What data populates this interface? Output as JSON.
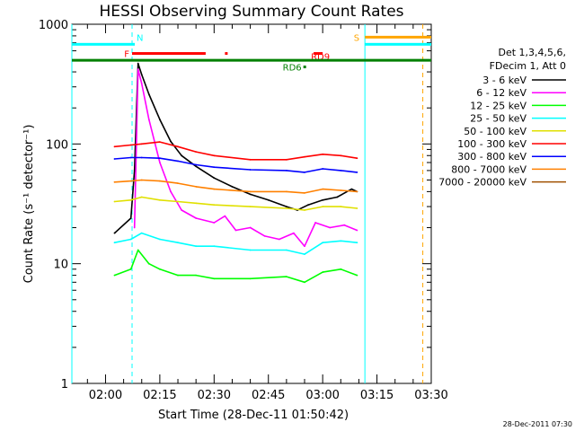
{
  "chart_data": {
    "type": "line",
    "title": "HESSI Observing Summary Count Rates",
    "xlabel": "Start Time (28-Dec-11 01:50:42)",
    "ylabel": "Count Rate (s⁻¹ detector⁻¹)",
    "yscale": "log",
    "ylim": [
      1,
      1000
    ],
    "xlim": [
      "01:50:42",
      "03:30:00"
    ],
    "yticks": [
      {
        "value": 1,
        "label": "1"
      },
      {
        "value": 10,
        "label": "10"
      },
      {
        "value": 100,
        "label": "100"
      },
      {
        "value": 1000,
        "label": "1000"
      }
    ],
    "xticks": [
      "02:00",
      "02:15",
      "02:30",
      "02:45",
      "03:00",
      "03:15",
      "03:30"
    ],
    "legend": {
      "placement": "right",
      "header": [
        "Det 1,3,4,5,6,",
        "FDecim 1, Att 0"
      ]
    },
    "series": [
      {
        "name": "3 - 6 keV",
        "color": "#000000",
        "points": [
          [
            "02:02:30",
            18
          ],
          [
            "02:07:00",
            24
          ],
          [
            "02:08:00",
            60
          ],
          [
            "02:09:00",
            470
          ],
          [
            "02:10:00",
            380
          ],
          [
            "02:12:00",
            260
          ],
          [
            "02:15:00",
            160
          ],
          [
            "02:18:00",
            105
          ],
          [
            "02:21:00",
            80
          ],
          [
            "02:25:00",
            65
          ],
          [
            "02:30:00",
            52
          ],
          [
            "02:35:00",
            44
          ],
          [
            "02:40:00",
            38
          ],
          [
            "02:45:00",
            34
          ],
          [
            "02:50:00",
            30
          ],
          [
            "02:53:00",
            28
          ],
          [
            "02:56:00",
            31
          ],
          [
            "03:00:00",
            34
          ],
          [
            "03:04:00",
            36
          ],
          [
            "03:08:00",
            42
          ],
          [
            "03:09:30",
            40
          ]
        ]
      },
      {
        "name": "6 - 12 keV",
        "color": "#ff00ff",
        "points": [
          [
            "02:08:00",
            20
          ],
          [
            "02:09:00",
            420
          ],
          [
            "02:10:00",
            320
          ],
          [
            "02:12:00",
            160
          ],
          [
            "02:15:00",
            70
          ],
          [
            "02:18:00",
            40
          ],
          [
            "02:21:00",
            28
          ],
          [
            "02:25:00",
            24
          ],
          [
            "02:30:00",
            22
          ],
          [
            "02:33:00",
            25
          ],
          [
            "02:36:00",
            19
          ],
          [
            "02:40:00",
            20
          ],
          [
            "02:44:00",
            17
          ],
          [
            "02:48:00",
            16
          ],
          [
            "02:52:00",
            18
          ],
          [
            "02:55:00",
            14
          ],
          [
            "02:58:00",
            22
          ],
          [
            "03:02:00",
            20
          ],
          [
            "03:06:00",
            21
          ],
          [
            "03:09:30",
            19
          ]
        ]
      },
      {
        "name": "12 - 25 keV",
        "color": "#00ff00",
        "points": [
          [
            "02:02:30",
            8
          ],
          [
            "02:07:00",
            9
          ],
          [
            "02:09:00",
            13
          ],
          [
            "02:12:00",
            10
          ],
          [
            "02:15:00",
            9
          ],
          [
            "02:20:00",
            8
          ],
          [
            "02:25:00",
            8
          ],
          [
            "02:30:00",
            7.5
          ],
          [
            "02:40:00",
            7.5
          ],
          [
            "02:50:00",
            7.8
          ],
          [
            "02:55:00",
            7
          ],
          [
            "03:00:00",
            8.5
          ],
          [
            "03:05:00",
            9
          ],
          [
            "03:09:30",
            8
          ]
        ]
      },
      {
        "name": "25 - 50 keV",
        "color": "#00ffff",
        "points": [
          [
            "02:02:30",
            15
          ],
          [
            "02:07:00",
            16
          ],
          [
            "02:10:00",
            18
          ],
          [
            "02:15:00",
            16
          ],
          [
            "02:20:00",
            15
          ],
          [
            "02:25:00",
            14
          ],
          [
            "02:30:00",
            14
          ],
          [
            "02:40:00",
            13
          ],
          [
            "02:50:00",
            13
          ],
          [
            "02:55:00",
            12
          ],
          [
            "03:00:00",
            15
          ],
          [
            "03:05:00",
            15.5
          ],
          [
            "03:09:30",
            15
          ]
        ]
      },
      {
        "name": "50 - 100 keV",
        "color": "#e0e000",
        "points": [
          [
            "02:02:30",
            33
          ],
          [
            "02:07:00",
            34
          ],
          [
            "02:10:00",
            36
          ],
          [
            "02:15:00",
            34
          ],
          [
            "02:20:00",
            33
          ],
          [
            "02:25:00",
            32
          ],
          [
            "02:30:00",
            31
          ],
          [
            "02:40:00",
            30
          ],
          [
            "02:50:00",
            29
          ],
          [
            "02:55:00",
            28
          ],
          [
            "03:00:00",
            30
          ],
          [
            "03:05:00",
            30
          ],
          [
            "03:09:30",
            29
          ]
        ]
      },
      {
        "name": "100 - 300 keV",
        "color": "#ff0000",
        "points": [
          [
            "02:02:30",
            95
          ],
          [
            "02:07:00",
            98
          ],
          [
            "02:10:00",
            100
          ],
          [
            "02:15:00",
            104
          ],
          [
            "02:20:00",
            95
          ],
          [
            "02:25:00",
            86
          ],
          [
            "02:30:00",
            80
          ],
          [
            "02:40:00",
            74
          ],
          [
            "02:50:00",
            74
          ],
          [
            "02:55:00",
            78
          ],
          [
            "03:00:00",
            82
          ],
          [
            "03:05:00",
            80
          ],
          [
            "03:09:30",
            76
          ]
        ]
      },
      {
        "name": "300 - 800 keV",
        "color": "#0000ff",
        "points": [
          [
            "02:02:30",
            75
          ],
          [
            "02:07:00",
            77
          ],
          [
            "02:10:00",
            77
          ],
          [
            "02:15:00",
            76
          ],
          [
            "02:20:00",
            72
          ],
          [
            "02:25:00",
            67
          ],
          [
            "02:30:00",
            64
          ],
          [
            "02:40:00",
            61
          ],
          [
            "02:50:00",
            60
          ],
          [
            "02:55:00",
            58
          ],
          [
            "03:00:00",
            62
          ],
          [
            "03:05:00",
            60
          ],
          [
            "03:09:30",
            58
          ]
        ]
      },
      {
        "name": "800 - 7000 keV",
        "color": "#ff8000",
        "points": [
          [
            "02:02:30",
            48
          ],
          [
            "02:07:00",
            49
          ],
          [
            "02:10:00",
            50
          ],
          [
            "02:15:00",
            49
          ],
          [
            "02:20:00",
            47
          ],
          [
            "02:25:00",
            44
          ],
          [
            "02:30:00",
            42
          ],
          [
            "02:40:00",
            40
          ],
          [
            "02:50:00",
            40
          ],
          [
            "02:55:00",
            39
          ],
          [
            "03:00:00",
            42
          ],
          [
            "03:05:00",
            41
          ],
          [
            "03:09:30",
            40
          ]
        ]
      },
      {
        "name": "7000 - 20000 keV",
        "color": "#a05000",
        "points": []
      }
    ],
    "vertical_markers": [
      {
        "x": "01:50:42",
        "color": "#00ffff",
        "style": "solid"
      },
      {
        "x": "02:07:20",
        "color": "#00ffff",
        "style": "dashed"
      },
      {
        "x": "03:11:40",
        "color": "#00ffff",
        "style": "solid"
      },
      {
        "x": "03:27:40",
        "color": "#ffa500",
        "style": "dashed"
      }
    ],
    "flag_bars": [
      {
        "label": "",
        "color": "#00ffff",
        "x": [
          "01:50:42",
          "02:07:20"
        ],
        "y": 680
      },
      {
        "label": "N",
        "color": "#00ffff",
        "x": [
          "02:07:20",
          "02:07:20"
        ],
        "y": 680
      },
      {
        "label": "F",
        "color": "#ff0000",
        "x": [
          "02:07:20",
          "02:27:40"
        ],
        "y": 570
      },
      {
        "label": "",
        "color": "#ff0000",
        "x": [
          "02:33:00",
          "02:33:20"
        ],
        "y": 570
      },
      {
        "label": "RD9",
        "color": "#ff0000",
        "x": [
          "02:57:30",
          "03:00:00"
        ],
        "y": 570
      },
      {
        "label": "",
        "color": "#008000",
        "x": [
          "01:50:42",
          "03:30:00"
        ],
        "y": 500
      },
      {
        "label": "RD6",
        "color": "#008000",
        "x": [
          "02:54:40",
          "02:55:10"
        ],
        "y": 440
      },
      {
        "label": "S",
        "color": "#ffa500",
        "x": [
          "03:11:40",
          "03:30:00"
        ],
        "y": 780
      },
      {
        "label": "",
        "color": "#00ffff",
        "x": [
          "03:11:40",
          "03:30:00"
        ],
        "y": 680
      }
    ],
    "timestamp": "28-Dec-2011 07:30"
  }
}
